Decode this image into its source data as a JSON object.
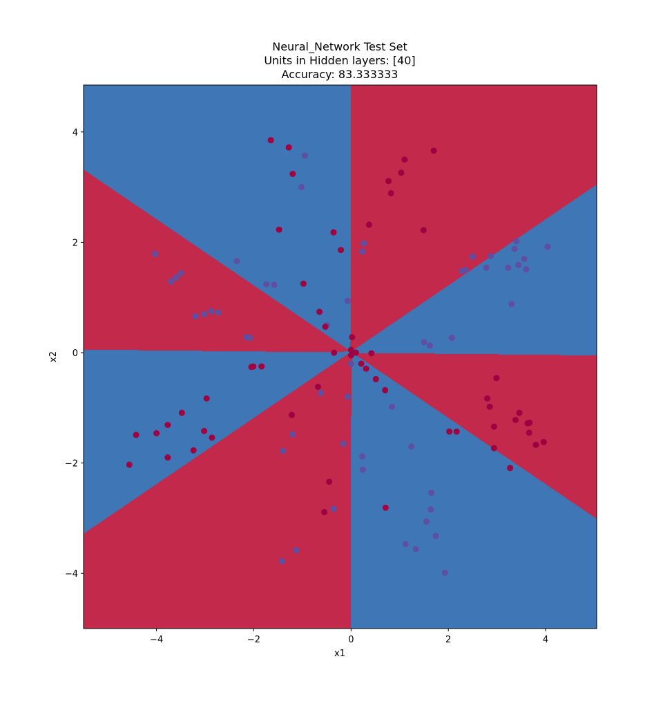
{
  "chart_data": {
    "type": "scatter",
    "title_lines": [
      "Neural_Network Test Set",
      "Units in Hidden layers: [40]",
      "Accuracy: 83.333333"
    ],
    "xlabel": "x1",
    "ylabel": "x2",
    "xlim": [
      -5.5,
      5.05
    ],
    "ylim": [
      -5.0,
      4.85
    ],
    "xticks": [
      -4,
      -2,
      0,
      2,
      4
    ],
    "yticks": [
      -4,
      -2,
      0,
      2,
      4
    ],
    "xtick_labels": [
      "−4",
      "−2",
      "0",
      "2",
      "4"
    ],
    "ytick_labels": [
      "−4",
      "−2",
      "0",
      "2",
      "4"
    ],
    "grid": false,
    "decision_regions": {
      "class_0_color": "#c2294a",
      "class_1_color": "#3f76b5",
      "description_classes": [
        0,
        1
      ]
    },
    "point_colors": {
      "class_0": "#9e0142",
      "class_1": "#5e4fa2"
    },
    "points_class_0": [
      [
        -1.65,
        3.85
      ],
      [
        -1.28,
        3.72
      ],
      [
        -1.2,
        3.24
      ],
      [
        -1.48,
        2.23
      ],
      [
        -0.98,
        1.25
      ],
      [
        1.7,
        3.66
      ],
      [
        1.1,
        3.5
      ],
      [
        1.03,
        3.26
      ],
      [
        0.77,
        3.11
      ],
      [
        0.82,
        2.89
      ],
      [
        1.49,
        2.22
      ],
      [
        0.37,
        2.32
      ],
      [
        -0.36,
        2.18
      ],
      [
        -0.21,
        1.86
      ],
      [
        -0.65,
        0.74
      ],
      [
        -0.53,
        0.47
      ],
      [
        -0.35,
        0.0
      ],
      [
        0.02,
        0.28
      ],
      [
        0.0,
        0.05
      ],
      [
        0.0,
        -0.05
      ],
      [
        0.1,
        0.0
      ],
      [
        0.21,
        -0.2
      ],
      [
        0.31,
        -0.29
      ],
      [
        0.42,
        -0.01
      ],
      [
        0.51,
        -0.48
      ],
      [
        0.7,
        -0.68
      ],
      [
        -0.68,
        -0.62
      ],
      [
        -2.05,
        -0.26
      ],
      [
        -2.01,
        -0.25
      ],
      [
        -1.84,
        -0.25
      ],
      [
        -2.97,
        -0.83
      ],
      [
        -3.48,
        -1.09
      ],
      [
        -3.77,
        -1.31
      ],
      [
        -4.0,
        -1.46
      ],
      [
        -4.42,
        -1.49
      ],
      [
        -3.02,
        -1.42
      ],
      [
        -2.86,
        -1.54
      ],
      [
        -3.24,
        -1.77
      ],
      [
        -3.77,
        -1.9
      ],
      [
        -4.56,
        -2.03
      ],
      [
        -1.22,
        -1.13
      ],
      [
        -0.45,
        -2.34
      ],
      [
        -0.55,
        -2.89
      ],
      [
        0.71,
        -2.81
      ],
      [
        2.99,
        -0.46
      ],
      [
        2.8,
        -0.83
      ],
      [
        2.85,
        -0.98
      ],
      [
        2.94,
        -1.34
      ],
      [
        3.46,
        -1.09
      ],
      [
        3.38,
        -1.22
      ],
      [
        3.63,
        -1.28
      ],
      [
        3.67,
        -1.27
      ],
      [
        3.66,
        -1.45
      ],
      [
        3.96,
        -1.62
      ],
      [
        3.8,
        -1.67
      ],
      [
        2.02,
        -1.43
      ],
      [
        2.17,
        -1.43
      ],
      [
        2.94,
        -1.73
      ],
      [
        3.27,
        -2.09
      ]
    ],
    "points_class_1": [
      [
        -0.95,
        3.57
      ],
      [
        -1.02,
        3.0
      ],
      [
        0.23,
        1.83
      ],
      [
        0.26,
        1.98
      ],
      [
        -0.07,
        0.94
      ],
      [
        -4.03,
        1.79
      ],
      [
        -3.7,
        1.29
      ],
      [
        -3.6,
        1.36
      ],
      [
        -3.5,
        1.44
      ],
      [
        -2.35,
        1.66
      ],
      [
        -1.74,
        1.24
      ],
      [
        -1.58,
        1.23
      ],
      [
        -3.2,
        0.66
      ],
      [
        -3.02,
        0.7
      ],
      [
        -2.88,
        0.75
      ],
      [
        -2.73,
        0.73
      ],
      [
        -2.15,
        0.28
      ],
      [
        -2.08,
        0.27
      ],
      [
        -0.5,
        0.5
      ],
      [
        2.5,
        1.74
      ],
      [
        2.28,
        1.48
      ],
      [
        2.35,
        1.5
      ],
      [
        2.78,
        1.54
      ],
      [
        2.87,
        1.75
      ],
      [
        3.23,
        1.54
      ],
      [
        3.36,
        1.88
      ],
      [
        3.4,
        2.02
      ],
      [
        3.44,
        1.59
      ],
      [
        3.56,
        1.7
      ],
      [
        3.6,
        1.51
      ],
      [
        4.04,
        1.92
      ],
      [
        3.3,
        0.88
      ],
      [
        1.5,
        0.19
      ],
      [
        1.62,
        0.13
      ],
      [
        2.07,
        0.27
      ],
      [
        0.0,
        -0.2
      ],
      [
        -0.07,
        -0.8
      ],
      [
        -0.62,
        -0.73
      ],
      [
        0.84,
        -0.98
      ],
      [
        -1.2,
        -1.48
      ],
      [
        -1.4,
        -1.78
      ],
      [
        -0.16,
        -1.65
      ],
      [
        0.23,
        -1.88
      ],
      [
        1.24,
        -1.7
      ],
      [
        0.24,
        -2.12
      ],
      [
        -0.36,
        -2.83
      ],
      [
        1.65,
        -2.54
      ],
      [
        1.64,
        -2.84
      ],
      [
        1.55,
        -3.06
      ],
      [
        1.74,
        -3.32
      ],
      [
        1.12,
        -3.47
      ],
      [
        1.33,
        -3.56
      ],
      [
        -1.13,
        -3.58
      ],
      [
        -1.42,
        -3.78
      ],
      [
        1.93,
        -3.99
      ]
    ]
  }
}
